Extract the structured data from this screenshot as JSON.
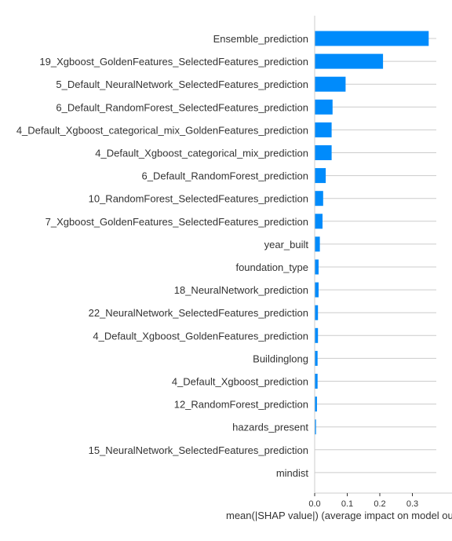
{
  "chart_data": {
    "type": "bar",
    "orientation": "horizontal",
    "xlabel": "mean(|SHAP value|) (average impact on model output magnitude)",
    "xlim": [
      0,
      0.37
    ],
    "xticks": [
      0.0,
      0.1,
      0.2,
      0.3
    ],
    "xtick_labels": [
      "0.0",
      "0.1",
      "0.2",
      "0.3"
    ],
    "grid": true,
    "bar_color": "#008bfb",
    "categories": [
      "Ensemble_prediction",
      "19_Xgboost_GoldenFeatures_SelectedFeatures_prediction",
      "5_Default_NeuralNetwork_SelectedFeatures_prediction",
      "6_Default_RandomForest_SelectedFeatures_prediction",
      "4_Default_Xgboost_categorical_mix_GoldenFeatures_prediction",
      "4_Default_Xgboost_categorical_mix_prediction",
      "6_Default_RandomForest_prediction",
      "10_RandomForest_SelectedFeatures_prediction",
      "7_Xgboost_GoldenFeatures_SelectedFeatures_prediction",
      "year_built",
      "foundation_type",
      "18_NeuralNetwork_prediction",
      "22_NeuralNetwork_SelectedFeatures_prediction",
      "4_Default_Xgboost_GoldenFeatures_prediction",
      "Buildinglong",
      "4_Default_Xgboost_prediction",
      "12_RandomForest_prediction",
      "hazards_present",
      "15_NeuralNetwork_SelectedFeatures_prediction",
      "mindist"
    ],
    "values": [
      0.35,
      0.21,
      0.095,
      0.055,
      0.052,
      0.052,
      0.034,
      0.026,
      0.024,
      0.016,
      0.012,
      0.012,
      0.01,
      0.01,
      0.009,
      0.009,
      0.007,
      0.004,
      0.0012,
      0.0004
    ]
  }
}
